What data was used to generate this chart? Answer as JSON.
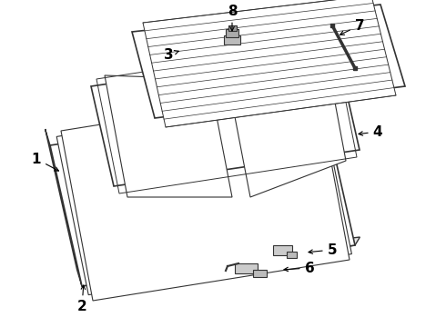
{
  "background_color": "#ffffff",
  "line_color": "#333333",
  "label_color": "#000000",
  "figsize": [
    4.9,
    3.6
  ],
  "dpi": 100,
  "label_fontsize": 11
}
